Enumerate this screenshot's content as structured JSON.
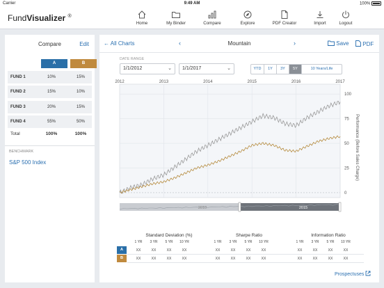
{
  "status_bar": {
    "carrier": "Carrier",
    "time": "9:49 AM",
    "battery": "100%"
  },
  "header": {
    "brand_prefix": "Fund",
    "brand_bold": "Visualizer",
    "brand_mark": "®",
    "nav": [
      {
        "label": "Home",
        "icon": "home-icon"
      },
      {
        "label": "My Binder",
        "icon": "folder-icon"
      },
      {
        "label": "Compare",
        "icon": "bar-chart-icon"
      },
      {
        "label": "Explore",
        "icon": "compass-icon"
      },
      {
        "label": "PDF Creator",
        "icon": "document-icon"
      },
      {
        "label": "Import",
        "icon": "import-icon"
      },
      {
        "label": "Logout",
        "icon": "power-icon"
      }
    ]
  },
  "compare": {
    "title": "Compare",
    "edit": "Edit",
    "col_a": "A",
    "col_b": "B",
    "funds": [
      {
        "name": "FUND 1",
        "a": "10%",
        "b": "15%"
      },
      {
        "name": "FUND 2",
        "a": "15%",
        "b": "10%"
      },
      {
        "name": "FUND 3",
        "a": "20%",
        "b": "15%"
      },
      {
        "name": "FUND 4",
        "a": "55%",
        "b": "50%"
      }
    ],
    "total": {
      "name": "Total",
      "a": "100%",
      "b": "100%"
    },
    "benchmark_label": "BENCHMARK",
    "benchmark_value": "S&P 500 Index",
    "colors": {
      "a": "#2a6fa8",
      "b": "#c08a3e"
    }
  },
  "main": {
    "back": "All Charts",
    "title": "Mountain",
    "save": "Save",
    "pdf": "PDF",
    "date_range_label": "DATE RANGE",
    "start_date": "1/1/2012",
    "end_date": "1/1/2017",
    "ranges": [
      "YTD",
      "1Y",
      "3Y",
      "5Y",
      "10 Years/Life"
    ],
    "active_range": "5Y",
    "prospectuses": "Prospectuses"
  },
  "chart_data": {
    "type": "line",
    "ylabel": "Performance (Before Sales Charge)",
    "x_ticks": [
      "2012",
      "2013",
      "2014",
      "2015",
      "2016",
      "2017"
    ],
    "y_ticks": [
      0,
      25,
      50,
      75,
      100
    ],
    "ylim": [
      -5,
      110
    ],
    "xlim": [
      2012,
      2017
    ],
    "navigator_labels": [
      "2010",
      "2015"
    ],
    "series": [
      {
        "color": "#999999",
        "x": [
          2012,
          2012.25,
          2012.5,
          2012.75,
          2013,
          2013.25,
          2013.5,
          2013.75,
          2014,
          2014.25,
          2014.5,
          2014.75,
          2015,
          2015.25,
          2015.5,
          2015.75,
          2016,
          2016.25,
          2016.5,
          2016.75,
          2017
        ],
        "values": [
          0,
          5,
          8,
          14,
          18,
          26,
          34,
          42,
          48,
          54,
          60,
          66,
          72,
          78,
          76,
          70,
          68,
          76,
          82,
          88,
          92
        ]
      },
      {
        "color": "#b58a3c",
        "x": [
          2012,
          2012.25,
          2012.5,
          2012.75,
          2013,
          2013.25,
          2013.5,
          2013.75,
          2014,
          2014.25,
          2014.5,
          2014.75,
          2015,
          2015.25,
          2015.5,
          2015.75,
          2016,
          2016.25,
          2016.5,
          2016.75,
          2017
        ],
        "values": [
          0,
          3,
          6,
          9,
          11,
          15,
          20,
          25,
          28,
          32,
          37,
          42,
          48,
          50,
          48,
          43,
          42,
          47,
          52,
          55,
          57
        ]
      }
    ],
    "grid": true
  },
  "stats": {
    "groups": [
      {
        "title": "Standard Deviation (%)",
        "periods": [
          "1 YR",
          "3 YR",
          "5 YR",
          "10 YR"
        ]
      },
      {
        "title": "Sharpe Ratio",
        "periods": [
          "1 YR",
          "3 YR",
          "5 YR",
          "10 YR"
        ]
      },
      {
        "title": "Information Ratio",
        "periods": [
          "1 YR",
          "3 YR",
          "5 YR",
          "10 YR"
        ]
      }
    ],
    "rows": [
      {
        "badge": "A",
        "values": [
          "XX",
          "XX",
          "XX",
          "XX",
          "XX",
          "XX",
          "XX",
          "XX",
          "XX",
          "XX",
          "XX",
          "XX"
        ]
      },
      {
        "badge": "B",
        "values": [
          "XX",
          "XX",
          "XX",
          "XX",
          "XX",
          "XX",
          "XX",
          "XX",
          "XX",
          "XX",
          "XX",
          "XX"
        ]
      }
    ]
  }
}
